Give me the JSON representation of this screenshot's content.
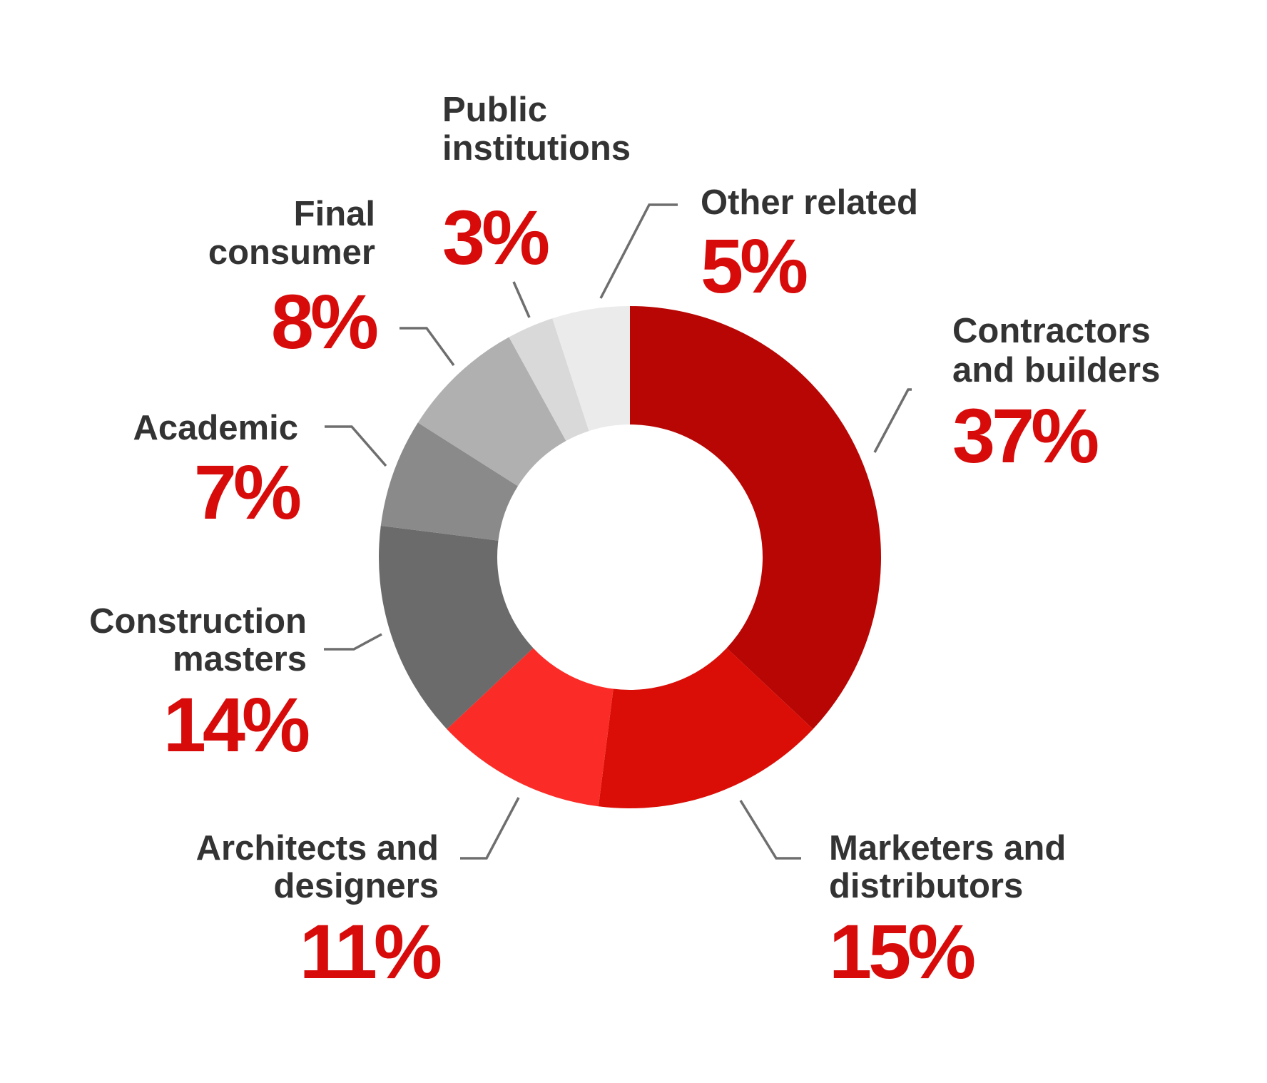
{
  "chart_data": {
    "type": "pie",
    "donut": true,
    "title": "",
    "unit": "%",
    "slices": [
      {
        "label": "Contractors and builders",
        "label_lines": [
          "Contractors",
          "and builders"
        ],
        "value": 37,
        "value_label": "37%",
        "color": "#b80604"
      },
      {
        "label": "Marketers and distributors",
        "label_lines": [
          "Marketers and",
          "distributors"
        ],
        "value": 15,
        "value_label": "15%",
        "color": "#da0e06"
      },
      {
        "label": "Architects and designers",
        "label_lines": [
          "Architects and",
          "designers"
        ],
        "value": 11,
        "value_label": "11%",
        "color": "#fb2b27"
      },
      {
        "label": "Construction masters",
        "label_lines": [
          "Construction",
          "masters"
        ],
        "value": 14,
        "value_label": "14%",
        "color": "#6b6b6b"
      },
      {
        "label": "Academic",
        "label_lines": [
          "Academic"
        ],
        "value": 7,
        "value_label": "7%",
        "color": "#8a8a8a"
      },
      {
        "label": "Final consumer",
        "label_lines": [
          "Final",
          "consumer"
        ],
        "value": 8,
        "value_label": "8%",
        "color": "#b0b0b0"
      },
      {
        "label": "Public institutions",
        "label_lines": [
          "Public",
          "institutions"
        ],
        "value": 3,
        "value_label": "3%",
        "color": "#d9d9d9"
      },
      {
        "label": "Other related",
        "label_lines": [
          "Other related"
        ],
        "value": 5,
        "value_label": "5%",
        "color": "#ebebeb"
      }
    ],
    "percent_color": "#d80b0b",
    "label_color": "#333333",
    "leader_color": "#6e6e6e"
  }
}
